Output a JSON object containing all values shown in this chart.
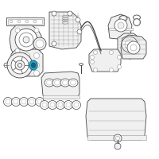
{
  "background_color": "#ffffff",
  "highlight_color": "#29a8c8",
  "line_color": "#999999",
  "dark_line": "#444444",
  "fig_width": 2.0,
  "fig_height": 2.0,
  "dpi": 100
}
